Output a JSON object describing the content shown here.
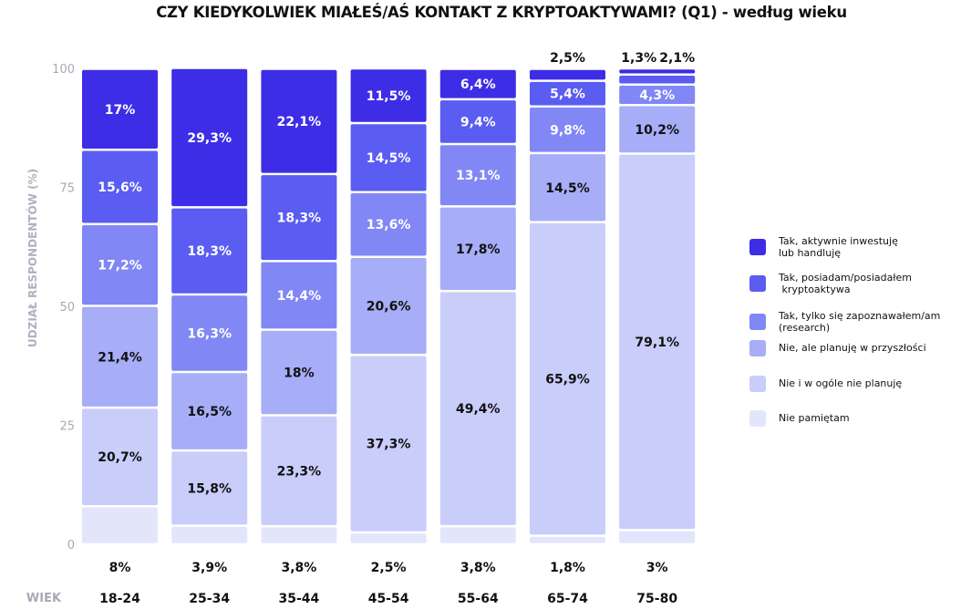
{
  "chart_data": {
    "type": "bar",
    "stacked": true,
    "title": "CZY KIEDYKOLWIEK MIAŁEŚ/AŚ KONTAKT Z KRYPTOAKTYWAMI? (Q1) - według wieku",
    "ylabel": "UDZIAŁ RESPONDENTÓW (%)",
    "xlabel": "WIEK",
    "ylim": [
      0,
      100
    ],
    "yticks": [
      0,
      25,
      50,
      75,
      100
    ],
    "categories": [
      "18-24",
      "25-34",
      "35-44",
      "45-54",
      "55-64",
      "65-74",
      "75-80"
    ],
    "series": [
      {
        "name": "Nie pamiętam",
        "color": "#e3e6fb",
        "values": [
          8,
          3.9,
          3.8,
          2.5,
          3.8,
          1.8,
          3
        ],
        "labels": [
          "8%",
          "3,9%",
          "3,8%",
          "2,5%",
          "3,8%",
          "1,8%",
          "3%"
        ]
      },
      {
        "name": "Nie i w ogóle nie planuję",
        "color": "#c9cdfa",
        "values": [
          20.7,
          15.8,
          23.3,
          37.3,
          49.4,
          65.9,
          79.1
        ],
        "labels": [
          "20,7%",
          "15,8%",
          "23,3%",
          "37,3%",
          "49,4%",
          "65,9%",
          "79,1%"
        ]
      },
      {
        "name": "Nie, ale planuję w przyszłości",
        "color": "#a7adf7",
        "values": [
          21.4,
          16.5,
          18,
          20.6,
          17.8,
          14.5,
          10.2
        ],
        "labels": [
          "21,4%",
          "16,5%",
          "18%",
          "20,6%",
          "17,8%",
          "14,5%",
          "10,2%"
        ]
      },
      {
        "name": "Tak, tylko się zapoznawałem/am (research)",
        "color": "#8187f5",
        "values": [
          17.2,
          16.3,
          14.4,
          13.6,
          13.1,
          9.8,
          4.3
        ],
        "labels": [
          "17,2%",
          "16,3%",
          "14,4%",
          "13,6%",
          "13,1%",
          "9,8%",
          "4,3%"
        ]
      },
      {
        "name": "Tak, posiadam/posiadałem kryptoaktywa",
        "color": "#5a5cf2",
        "values": [
          15.6,
          18.3,
          18.3,
          14.5,
          9.4,
          5.4,
          2.1
        ],
        "labels": [
          "15,6%",
          "18,3%",
          "18,3%",
          "14,5%",
          "9,4%",
          "5,4%",
          "2,1%"
        ]
      },
      {
        "name": "Tak, aktywnie inwestuję lub handluję",
        "color": "#3e2de6",
        "values": [
          17,
          29.3,
          22.1,
          11.5,
          6.4,
          2.5,
          1.3
        ],
        "labels": [
          "17%",
          "29,3%",
          "22,1%",
          "11,5%",
          "6,4%",
          "2,5%",
          "1,3%"
        ]
      }
    ],
    "legend_position": "right",
    "grid": false
  },
  "legend": [
    {
      "lines": [
        "Tak, aktywnie inwestuję",
        "lub handluję"
      ],
      "color": "#3e2de6"
    },
    {
      "lines": [
        "Tak, posiadam/posiadałem",
        " kryptoaktywa"
      ],
      "color": "#5a5cf2"
    },
    {
      "lines": [
        "Tak, tylko się zapoznawałem/am",
        "(research)"
      ],
      "color": "#8187f5"
    },
    {
      "lines": [
        "Nie, ale planuję w przyszłości"
      ],
      "color": "#a7adf7"
    },
    {
      "lines": [
        "Nie i w ogóle nie planuję"
      ],
      "color": "#c9cdfa"
    },
    {
      "lines": [
        "Nie pamiętam"
      ],
      "color": "#e3e6fb"
    }
  ]
}
